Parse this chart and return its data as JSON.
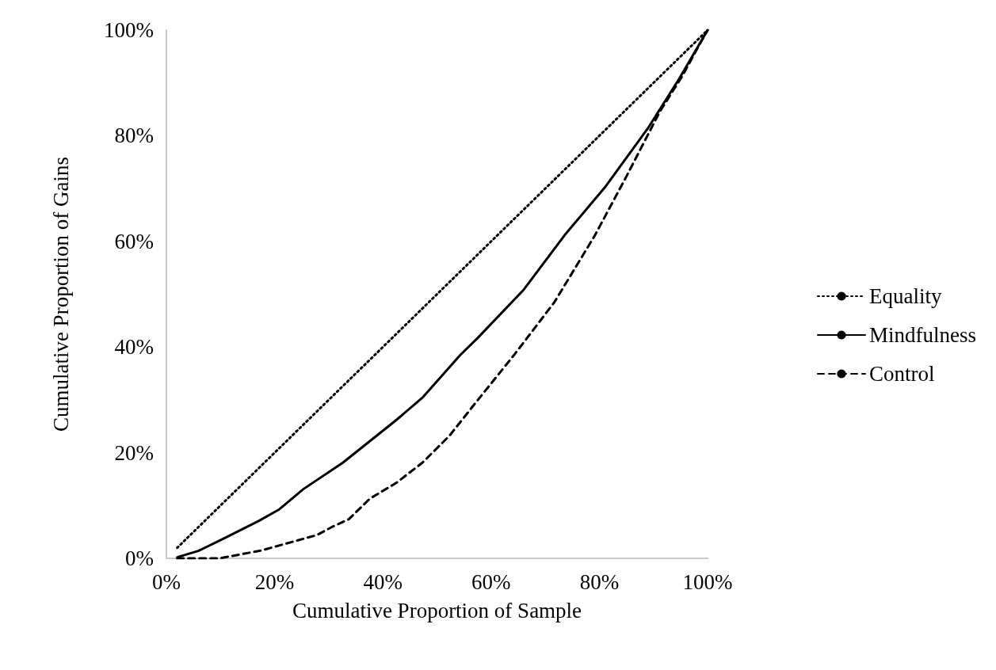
{
  "chart_data": {
    "type": "line",
    "xlabel": "Cumulative Proportion of Sample",
    "ylabel": "Cumulative Proportion of Gains",
    "xlim": [
      0,
      100
    ],
    "ylim": [
      0,
      100
    ],
    "xticks": [
      {
        "value": 0,
        "label": "0%"
      },
      {
        "value": 20,
        "label": "20%"
      },
      {
        "value": 40,
        "label": "40%"
      },
      {
        "value": 60,
        "label": "60%"
      },
      {
        "value": 80,
        "label": "80%"
      },
      {
        "value": 100,
        "label": "100%"
      }
    ],
    "yticks": [
      {
        "value": 0,
        "label": "0%"
      },
      {
        "value": 20,
        "label": "20%"
      },
      {
        "value": 40,
        "label": "40%"
      },
      {
        "value": 60,
        "label": "60%"
      },
      {
        "value": 80,
        "label": "80%"
      },
      {
        "value": 100,
        "label": "100%"
      }
    ],
    "grid": false,
    "legend": "right",
    "marker": "none",
    "series": [
      {
        "name": "Equality",
        "color": "#000000",
        "line_style": "dotted",
        "x": [
          2,
          100
        ],
        "values": [
          2,
          100
        ]
      },
      {
        "name": "Mindfulness",
        "color": "#000000",
        "line_style": "solid",
        "x": [
          2,
          5.9,
          10.7,
          17.1,
          20.9,
          25.3,
          32.6,
          42.5,
          47.3,
          54.3,
          57.5,
          65.9,
          73.6,
          81,
          88.9,
          94.7,
          100
        ],
        "values": [
          0.2,
          1.4,
          3.8,
          7.1,
          9.3,
          13.1,
          18.1,
          26.2,
          30.4,
          38.5,
          41.7,
          50.7,
          61.2,
          70.2,
          81.3,
          90.7,
          100
        ]
      },
      {
        "name": "Control",
        "color": "#000000",
        "line_style": "dashed",
        "x": [
          2,
          9.8,
          17.6,
          27.8,
          30.7,
          33.7,
          37.6,
          42.5,
          47.3,
          52.3,
          57.1,
          64.4,
          71.7,
          79.1,
          84.9,
          91.2,
          95.2,
          100
        ],
        "values": [
          0,
          0,
          1.5,
          4.4,
          6,
          7.4,
          11.3,
          14.3,
          18.1,
          23.2,
          29.4,
          38.7,
          48.5,
          61,
          72.1,
          84.6,
          91.1,
          100
        ]
      }
    ]
  }
}
